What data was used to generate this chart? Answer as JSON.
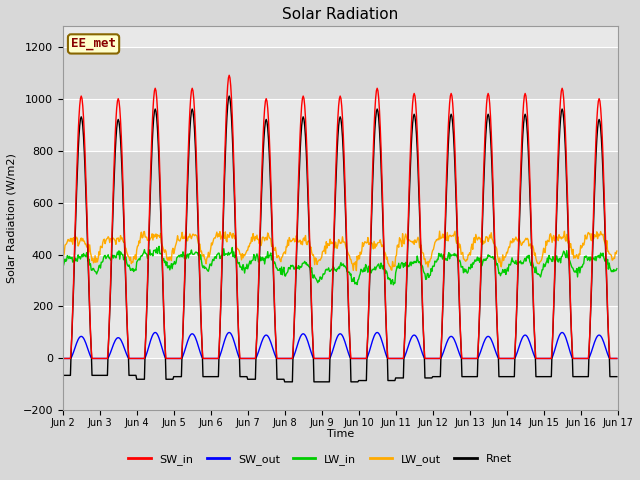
{
  "title": "Solar Radiation",
  "ylabel": "Solar Radiation (W/m2)",
  "xlabel": "Time",
  "ylim": [
    -200,
    1280
  ],
  "yticks": [
    -200,
    0,
    200,
    400,
    600,
    800,
    1000,
    1200
  ],
  "annotation": "EE_met",
  "legend": [
    "SW_in",
    "SW_out",
    "LW_in",
    "LW_out",
    "Rnet"
  ],
  "colors": {
    "SW_in": "#ff0000",
    "SW_out": "#0000ff",
    "LW_in": "#00cc00",
    "LW_out": "#ffaa00",
    "Rnet": "#000000"
  },
  "xtick_labels": [
    "Jun 2",
    "Jun 3",
    "Jun 4",
    "Jun 5",
    "Jun 6",
    "Jun 7",
    "Jun 8",
    "Jun 9",
    "Jun 10",
    "Jun 11",
    "Jun 12",
    "Jun 13",
    "Jun 14",
    "Jun 15",
    "Jun 16",
    "Jun 17"
  ],
  "n_days": 15,
  "bg_color": "#d8d8d8",
  "plot_bg_light": "#e8e8e8",
  "plot_bg_dark": "#cccccc",
  "SW_in_peaks": [
    1010,
    1000,
    1040,
    1040,
    1090,
    1000,
    1010,
    1010,
    1040,
    1020,
    1020,
    1020,
    1020,
    1040,
    1000
  ],
  "SW_out_peaks": [
    85,
    80,
    100,
    95,
    100,
    90,
    95,
    95,
    100,
    90,
    85,
    85,
    90,
    100,
    90
  ],
  "LW_in_base": [
    375,
    378,
    390,
    383,
    383,
    373,
    338,
    333,
    333,
    353,
    378,
    368,
    358,
    373,
    373
  ],
  "LW_out_base": [
    430,
    433,
    443,
    438,
    448,
    438,
    428,
    418,
    413,
    428,
    443,
    433,
    428,
    443,
    443
  ],
  "Rnet_peaks": [
    930,
    920,
    960,
    960,
    1010,
    920,
    930,
    930,
    960,
    940,
    940,
    940,
    940,
    960,
    920
  ],
  "Rnet_night": [
    -65,
    -65,
    -80,
    -70,
    -70,
    -80,
    -90,
    -90,
    -85,
    -75,
    -70,
    -70,
    -70,
    -70,
    -70
  ]
}
